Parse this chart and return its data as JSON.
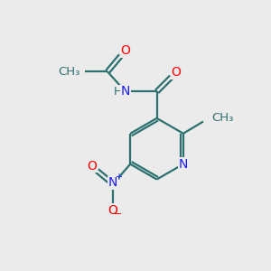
{
  "background_color": "#ebebeb",
  "bond_color": "#2d7070",
  "N_color": "#1a1aff",
  "O_color": "#ff0000",
  "line_width": 1.6,
  "font_size": 10,
  "figsize": [
    3.0,
    3.0
  ],
  "dpi": 100,
  "xlim": [
    0,
    10
  ],
  "ylim": [
    0,
    10
  ]
}
